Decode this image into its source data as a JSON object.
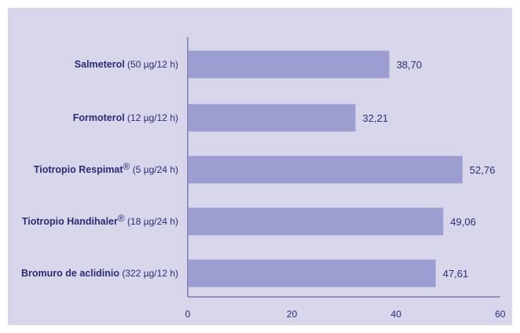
{
  "chart_data": {
    "type": "bar",
    "orientation": "horizontal",
    "categories": [
      {
        "name": "Salmeterol",
        "detail": "(50 µg/12 h)",
        "sup": ""
      },
      {
        "name": "Formoterol",
        "detail": "(12 µg/12 h)",
        "sup": ""
      },
      {
        "name": "Tiotropio Respimat",
        "detail": "(5 µg/24 h)",
        "sup": "®"
      },
      {
        "name": "Tiotropio Handihaler",
        "detail": "(18 µg/24 h)",
        "sup": "®"
      },
      {
        "name": "Bromuro de aclidinio",
        "detail": "(322 µg/12 h)",
        "sup": ""
      }
    ],
    "values": [
      38.7,
      32.21,
      52.76,
      49.06,
      47.61
    ],
    "value_labels": [
      "38,70",
      "32,21",
      "52,76",
      "49,06",
      "47,61"
    ],
    "xlim": [
      0,
      60
    ],
    "x_ticks": [
      0,
      20,
      40,
      60
    ],
    "x_tick_labels": [
      "0",
      "20",
      "40",
      "60"
    ],
    "title": "",
    "xlabel": "",
    "ylabel": "",
    "grid": false,
    "legend": false,
    "colors": {
      "panel_background": "#d7d6eb",
      "bar": "#9c9dd1",
      "axis": "#4a4c8e",
      "text": "#2a2d73"
    }
  }
}
